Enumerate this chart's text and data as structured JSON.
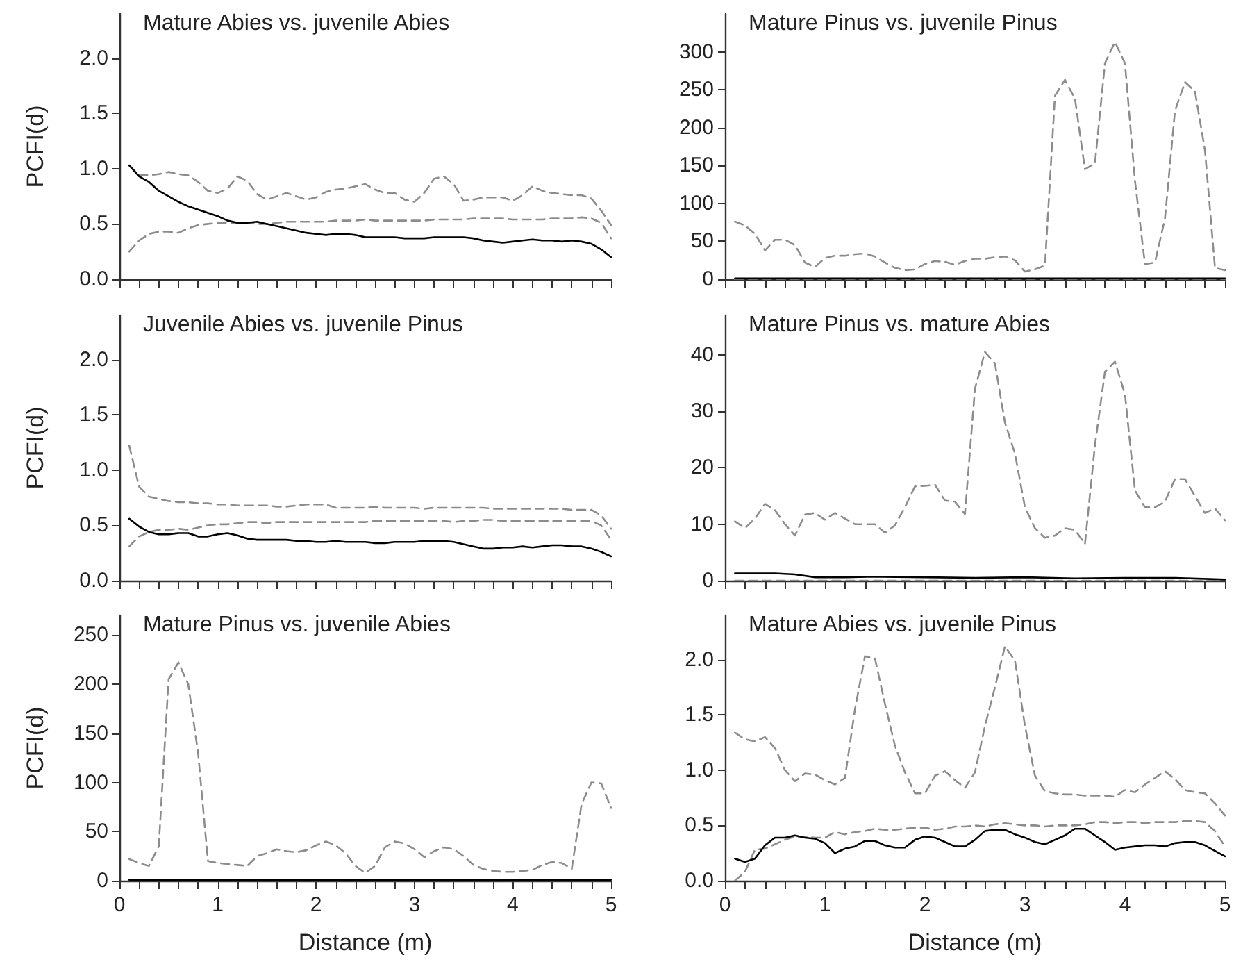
{
  "chart_data": [
    {
      "type": "line",
      "title": "Mature Abies vs. juvenile Abies",
      "ylabel": "PCFI(d)",
      "tick_labels": "y",
      "marker": "none",
      "x": [
        0.1,
        0.2,
        0.3,
        0.4,
        0.5,
        0.6,
        0.7,
        0.8,
        0.9,
        1.0,
        1.1,
        1.2,
        1.3,
        1.4,
        1.5,
        1.6,
        1.7,
        1.8,
        1.9,
        2.0,
        2.1,
        2.2,
        2.3,
        2.4,
        2.5,
        2.6,
        2.7,
        2.8,
        2.9,
        3.0,
        3.1,
        3.2,
        3.3,
        3.4,
        3.5,
        3.6,
        3.7,
        3.8,
        3.9,
        4.0,
        4.1,
        4.2,
        4.3,
        4.4,
        4.5,
        4.6,
        4.7,
        4.8,
        4.9,
        5.0
      ],
      "xlim": [
        0,
        5
      ],
      "xticks": [
        0,
        {
          "value": 0.2,
          "label": null
        },
        {
          "value": 0.4,
          "label": null
        },
        {
          "value": 0.6,
          "label": null
        },
        {
          "value": 0.8,
          "label": null
        },
        1,
        {
          "value": 1.2,
          "label": null
        },
        {
          "value": 1.4,
          "label": null
        },
        {
          "value": 1.6,
          "label": null
        },
        {
          "value": 1.8,
          "label": null
        },
        2,
        {
          "value": 2.2,
          "label": null
        },
        {
          "value": 2.4,
          "label": null
        },
        {
          "value": 2.6,
          "label": null
        },
        {
          "value": 2.8,
          "label": null
        },
        3,
        {
          "value": 3.2,
          "label": null
        },
        {
          "value": 3.4,
          "label": null
        },
        {
          "value": 3.6,
          "label": null
        },
        {
          "value": 3.8,
          "label": null
        },
        4,
        {
          "value": 4.2,
          "label": null
        },
        {
          "value": 4.4,
          "label": null
        },
        {
          "value": 4.6,
          "label": null
        },
        {
          "value": 4.8,
          "label": null
        },
        5
      ],
      "ylim": [
        0,
        2.4
      ],
      "yticks": [
        {
          "value": 0,
          "label": "0.0"
        },
        0.5,
        {
          "value": 1,
          "label": "1.0"
        },
        1.5,
        {
          "value": 2,
          "label": "2.0"
        }
      ],
      "series": [
        {
          "color": "#8c8c8c",
          "line_style": "dashed",
          "values": [
            1.03,
            0.94,
            0.94,
            0.95,
            0.97,
            0.95,
            0.94,
            0.88,
            0.8,
            0.78,
            0.82,
            0.93,
            0.89,
            0.77,
            0.72,
            0.75,
            0.78,
            0.75,
            0.72,
            0.74,
            0.79,
            0.81,
            0.82,
            0.84,
            0.86,
            0.81,
            0.78,
            0.78,
            0.72,
            0.7,
            0.78,
            0.91,
            0.93,
            0.86,
            0.71,
            0.72,
            0.74,
            0.74,
            0.74,
            0.71,
            0.76,
            0.84,
            0.8,
            0.78,
            0.77,
            0.76,
            0.76,
            0.73,
            0.62,
            0.49
          ]
        },
        {
          "color": "#8c8c8c",
          "line_style": "dashed",
          "values": [
            0.25,
            0.35,
            0.41,
            0.43,
            0.43,
            0.42,
            0.46,
            0.49,
            0.5,
            0.51,
            0.51,
            0.51,
            0.51,
            0.5,
            0.5,
            0.51,
            0.52,
            0.52,
            0.52,
            0.52,
            0.52,
            0.53,
            0.53,
            0.53,
            0.54,
            0.53,
            0.53,
            0.53,
            0.53,
            0.53,
            0.53,
            0.54,
            0.54,
            0.54,
            0.54,
            0.55,
            0.55,
            0.55,
            0.55,
            0.54,
            0.54,
            0.54,
            0.54,
            0.55,
            0.55,
            0.55,
            0.56,
            0.55,
            0.51,
            0.37
          ]
        },
        {
          "color": "#000000",
          "line_style": "solid",
          "values": [
            1.03,
            0.93,
            0.88,
            0.8,
            0.75,
            0.7,
            0.66,
            0.63,
            0.6,
            0.57,
            0.53,
            0.51,
            0.51,
            0.52,
            0.5,
            0.48,
            0.46,
            0.44,
            0.42,
            0.41,
            0.4,
            0.41,
            0.41,
            0.4,
            0.38,
            0.38,
            0.38,
            0.38,
            0.37,
            0.37,
            0.37,
            0.38,
            0.38,
            0.38,
            0.38,
            0.37,
            0.35,
            0.34,
            0.33,
            0.34,
            0.35,
            0.36,
            0.35,
            0.35,
            0.34,
            0.35,
            0.34,
            0.32,
            0.27,
            0.2
          ]
        }
      ]
    },
    {
      "type": "line",
      "title": "Mature Pinus vs. juvenile Pinus",
      "tick_labels": "y",
      "marker": "none",
      "x": [
        0.1,
        0.2,
        0.3,
        0.4,
        0.5,
        0.6,
        0.7,
        0.8,
        0.9,
        1.0,
        1.1,
        1.2,
        1.3,
        1.4,
        1.5,
        1.6,
        1.7,
        1.8,
        1.9,
        2.0,
        2.1,
        2.2,
        2.3,
        2.4,
        2.5,
        2.6,
        2.7,
        2.8,
        2.9,
        3.0,
        3.1,
        3.2,
        3.3,
        3.4,
        3.5,
        3.6,
        3.7,
        3.8,
        3.9,
        4.0,
        4.1,
        4.2,
        4.3,
        4.4,
        4.5,
        4.6,
        4.7,
        4.8,
        4.9,
        5.0
      ],
      "xlim": [
        0,
        5
      ],
      "xticks": [
        0,
        {
          "value": 0.2,
          "label": null
        },
        {
          "value": 0.4,
          "label": null
        },
        {
          "value": 0.6,
          "label": null
        },
        {
          "value": 0.8,
          "label": null
        },
        1,
        {
          "value": 1.2,
          "label": null
        },
        {
          "value": 1.4,
          "label": null
        },
        {
          "value": 1.6,
          "label": null
        },
        {
          "value": 1.8,
          "label": null
        },
        2,
        {
          "value": 2.2,
          "label": null
        },
        {
          "value": 2.4,
          "label": null
        },
        {
          "value": 2.6,
          "label": null
        },
        {
          "value": 2.8,
          "label": null
        },
        3,
        {
          "value": 3.2,
          "label": null
        },
        {
          "value": 3.4,
          "label": null
        },
        {
          "value": 3.6,
          "label": null
        },
        {
          "value": 3.8,
          "label": null
        },
        4,
        {
          "value": 4.2,
          "label": null
        },
        {
          "value": 4.4,
          "label": null
        },
        {
          "value": 4.6,
          "label": null
        },
        {
          "value": 4.8,
          "label": null
        },
        5
      ],
      "ylim": [
        0,
        350
      ],
      "yticks": [
        0,
        50,
        100,
        150,
        200,
        250,
        300
      ],
      "series": [
        {
          "color": "#8c8c8c",
          "line_style": "dashed",
          "values": [
            76,
            71,
            60,
            38,
            52,
            52,
            45,
            22,
            16,
            28,
            31,
            31,
            33,
            34,
            30,
            22,
            15,
            12,
            13,
            20,
            24,
            23,
            19,
            24,
            27,
            27,
            29,
            30,
            25,
            10,
            13,
            18,
            242,
            263,
            238,
            145,
            153,
            285,
            313,
            285,
            130,
            20,
            22,
            80,
            222,
            260,
            248,
            170,
            15,
            12
          ]
        },
        {
          "color": "#8c8c8c",
          "line_style": "dashed",
          "x": [
            0.1,
            5.0
          ],
          "values": [
            0,
            0
          ]
        },
        {
          "color": "#000000",
          "line_style": "solid",
          "x": [
            0.1,
            5.0
          ],
          "values": [
            1,
            1
          ]
        }
      ]
    },
    {
      "type": "line",
      "title": "Juvenile Abies vs. juvenile Pinus",
      "ylabel": "PCFI(d)",
      "tick_labels": "y",
      "marker": "none",
      "x": [
        0.1,
        0.2,
        0.3,
        0.4,
        0.5,
        0.6,
        0.7,
        0.8,
        0.9,
        1.0,
        1.1,
        1.2,
        1.3,
        1.4,
        1.5,
        1.6,
        1.7,
        1.8,
        1.9,
        2.0,
        2.1,
        2.2,
        2.3,
        2.4,
        2.5,
        2.6,
        2.7,
        2.8,
        2.9,
        3.0,
        3.1,
        3.2,
        3.3,
        3.4,
        3.5,
        3.6,
        3.7,
        3.8,
        3.9,
        4.0,
        4.1,
        4.2,
        4.3,
        4.4,
        4.5,
        4.6,
        4.7,
        4.8,
        4.9,
        5.0
      ],
      "xlim": [
        0,
        5
      ],
      "xticks": [
        0,
        {
          "value": 0.2,
          "label": null
        },
        {
          "value": 0.4,
          "label": null
        },
        {
          "value": 0.6,
          "label": null
        },
        {
          "value": 0.8,
          "label": null
        },
        1,
        {
          "value": 1.2,
          "label": null
        },
        {
          "value": 1.4,
          "label": null
        },
        {
          "value": 1.6,
          "label": null
        },
        {
          "value": 1.8,
          "label": null
        },
        2,
        {
          "value": 2.2,
          "label": null
        },
        {
          "value": 2.4,
          "label": null
        },
        {
          "value": 2.6,
          "label": null
        },
        {
          "value": 2.8,
          "label": null
        },
        3,
        {
          "value": 3.2,
          "label": null
        },
        {
          "value": 3.4,
          "label": null
        },
        {
          "value": 3.6,
          "label": null
        },
        {
          "value": 3.8,
          "label": null
        },
        4,
        {
          "value": 4.2,
          "label": null
        },
        {
          "value": 4.4,
          "label": null
        },
        {
          "value": 4.6,
          "label": null
        },
        {
          "value": 4.8,
          "label": null
        },
        5
      ],
      "ylim": [
        0,
        2.4
      ],
      "yticks": [
        {
          "value": 0,
          "label": "0.0"
        },
        0.5,
        {
          "value": 1,
          "label": "1.0"
        },
        1.5,
        {
          "value": 2,
          "label": "2.0"
        }
      ],
      "series": [
        {
          "color": "#8c8c8c",
          "line_style": "dashed",
          "values": [
            1.22,
            0.85,
            0.76,
            0.74,
            0.72,
            0.71,
            0.71,
            0.7,
            0.7,
            0.69,
            0.69,
            0.68,
            0.68,
            0.68,
            0.68,
            0.67,
            0.67,
            0.68,
            0.69,
            0.69,
            0.69,
            0.66,
            0.66,
            0.66,
            0.66,
            0.67,
            0.66,
            0.66,
            0.66,
            0.66,
            0.65,
            0.66,
            0.66,
            0.66,
            0.66,
            0.66,
            0.66,
            0.65,
            0.65,
            0.65,
            0.65,
            0.65,
            0.65,
            0.65,
            0.65,
            0.64,
            0.64,
            0.64,
            0.59,
            0.47
          ]
        },
        {
          "color": "#8c8c8c",
          "line_style": "dashed",
          "values": [
            0.31,
            0.4,
            0.44,
            0.46,
            0.46,
            0.47,
            0.46,
            0.48,
            0.5,
            0.51,
            0.51,
            0.52,
            0.53,
            0.53,
            0.52,
            0.53,
            0.53,
            0.53,
            0.53,
            0.53,
            0.53,
            0.53,
            0.53,
            0.53,
            0.53,
            0.54,
            0.54,
            0.54,
            0.54,
            0.54,
            0.54,
            0.54,
            0.54,
            0.53,
            0.54,
            0.54,
            0.55,
            0.55,
            0.54,
            0.54,
            0.54,
            0.54,
            0.54,
            0.54,
            0.54,
            0.54,
            0.54,
            0.54,
            0.5,
            0.37
          ]
        },
        {
          "color": "#000000",
          "line_style": "solid",
          "values": [
            0.56,
            0.49,
            0.44,
            0.42,
            0.42,
            0.43,
            0.43,
            0.4,
            0.4,
            0.42,
            0.43,
            0.41,
            0.38,
            0.37,
            0.37,
            0.37,
            0.37,
            0.36,
            0.36,
            0.35,
            0.35,
            0.36,
            0.35,
            0.35,
            0.35,
            0.34,
            0.34,
            0.35,
            0.35,
            0.35,
            0.36,
            0.36,
            0.36,
            0.35,
            0.33,
            0.31,
            0.29,
            0.29,
            0.3,
            0.3,
            0.31,
            0.3,
            0.31,
            0.32,
            0.32,
            0.31,
            0.31,
            0.29,
            0.26,
            0.22
          ]
        }
      ]
    },
    {
      "type": "line",
      "title": "Mature Pinus vs. mature Abies",
      "tick_labels": "y",
      "marker": "none",
      "x": [
        0.1,
        0.2,
        0.3,
        0.4,
        0.5,
        0.6,
        0.7,
        0.8,
        0.9,
        1.0,
        1.1,
        1.2,
        1.3,
        1.4,
        1.5,
        1.6,
        1.7,
        1.8,
        1.9,
        2.0,
        2.1,
        2.2,
        2.3,
        2.4,
        2.5,
        2.6,
        2.7,
        2.8,
        2.9,
        3.0,
        3.1,
        3.2,
        3.3,
        3.4,
        3.5,
        3.6,
        3.7,
        3.8,
        3.9,
        4.0,
        4.1,
        4.2,
        4.3,
        4.4,
        4.5,
        4.6,
        4.7,
        4.8,
        4.9,
        5.0
      ],
      "xlim": [
        0,
        5
      ],
      "xticks": [
        0,
        {
          "value": 0.2,
          "label": null
        },
        {
          "value": 0.4,
          "label": null
        },
        {
          "value": 0.6,
          "label": null
        },
        {
          "value": 0.8,
          "label": null
        },
        1,
        {
          "value": 1.2,
          "label": null
        },
        {
          "value": 1.4,
          "label": null
        },
        {
          "value": 1.6,
          "label": null
        },
        {
          "value": 1.8,
          "label": null
        },
        2,
        {
          "value": 2.2,
          "label": null
        },
        {
          "value": 2.4,
          "label": null
        },
        {
          "value": 2.6,
          "label": null
        },
        {
          "value": 2.8,
          "label": null
        },
        3,
        {
          "value": 3.2,
          "label": null
        },
        {
          "value": 3.4,
          "label": null
        },
        {
          "value": 3.6,
          "label": null
        },
        {
          "value": 3.8,
          "label": null
        },
        4,
        {
          "value": 4.2,
          "label": null
        },
        {
          "value": 4.4,
          "label": null
        },
        {
          "value": 4.6,
          "label": null
        },
        {
          "value": 4.8,
          "label": null
        },
        5
      ],
      "ylim": [
        0,
        47
      ],
      "yticks": [
        0,
        10,
        20,
        30,
        40
      ],
      "series": [
        {
          "color": "#8c8c8c",
          "line_style": "dashed",
          "values": [
            10.5,
            9.3,
            11,
            13.6,
            12.5,
            10,
            8,
            11.7,
            12,
            10.8,
            12,
            11,
            10,
            10,
            10,
            8.5,
            9.8,
            13,
            16.7,
            16.8,
            17,
            14.2,
            14,
            11.8,
            34,
            40.5,
            38.5,
            28,
            22.5,
            13,
            9.3,
            7.6,
            8,
            9.3,
            9,
            6.5,
            24,
            37,
            38.8,
            33,
            16,
            13,
            13,
            14,
            18,
            18,
            15,
            12,
            12.8,
            10.7
          ]
        },
        {
          "color": "#8c8c8c",
          "line_style": "dashed",
          "x": [
            0.1,
            5.0
          ],
          "values": [
            0,
            0
          ]
        },
        {
          "color": "#000000",
          "line_style": "solid",
          "x": [
            0.1,
            0.5,
            0.7,
            0.9,
            1.2,
            1.5,
            2.0,
            2.5,
            3.0,
            3.5,
            4.0,
            4.5,
            5.0
          ],
          "values": [
            1.3,
            1.3,
            1.1,
            0.6,
            0.6,
            0.7,
            0.6,
            0.5,
            0.6,
            0.4,
            0.5,
            0.5,
            0.2
          ]
        }
      ]
    },
    {
      "type": "line",
      "title": "Mature Pinus vs. juvenile Abies",
      "ylabel": "PCFI(d)",
      "xlabel": "Distance (m)",
      "marker": "none",
      "x": [
        0.1,
        0.2,
        0.3,
        0.4,
        0.5,
        0.6,
        0.7,
        0.8,
        0.9,
        1.0,
        1.1,
        1.2,
        1.3,
        1.4,
        1.5,
        1.6,
        1.7,
        1.8,
        1.9,
        2.0,
        2.1,
        2.2,
        2.3,
        2.4,
        2.5,
        2.6,
        2.7,
        2.8,
        2.9,
        3.0,
        3.1,
        3.2,
        3.3,
        3.4,
        3.5,
        3.6,
        3.7,
        3.8,
        3.9,
        4.0,
        4.1,
        4.2,
        4.3,
        4.4,
        4.5,
        4.6,
        4.7,
        4.8,
        4.9,
        5.0
      ],
      "xlim": [
        0,
        5
      ],
      "xticks": [
        0,
        {
          "value": 0.2,
          "label": null
        },
        {
          "value": 0.4,
          "label": null
        },
        {
          "value": 0.6,
          "label": null
        },
        {
          "value": 0.8,
          "label": null
        },
        1,
        {
          "value": 1.2,
          "label": null
        },
        {
          "value": 1.4,
          "label": null
        },
        {
          "value": 1.6,
          "label": null
        },
        {
          "value": 1.8,
          "label": null
        },
        2,
        {
          "value": 2.2,
          "label": null
        },
        {
          "value": 2.4,
          "label": null
        },
        {
          "value": 2.6,
          "label": null
        },
        {
          "value": 2.8,
          "label": null
        },
        3,
        {
          "value": 3.2,
          "label": null
        },
        {
          "value": 3.4,
          "label": null
        },
        {
          "value": 3.6,
          "label": null
        },
        {
          "value": 3.8,
          "label": null
        },
        4,
        {
          "value": 4.2,
          "label": null
        },
        {
          "value": 4.4,
          "label": null
        },
        {
          "value": 4.6,
          "label": null
        },
        {
          "value": 4.8,
          "label": null
        },
        5
      ],
      "ylim": [
        0,
        270
      ],
      "yticks": [
        0,
        50,
        100,
        150,
        200,
        250
      ],
      "series": [
        {
          "color": "#8c8c8c",
          "line_style": "dashed",
          "values": [
            22,
            18,
            15,
            35,
            205,
            222,
            200,
            130,
            20,
            18,
            17,
            16,
            15,
            25,
            28,
            32,
            30,
            29,
            31,
            36,
            40,
            36,
            28,
            15,
            8,
            15,
            34,
            40,
            38,
            32,
            24,
            30,
            34,
            32,
            25,
            16,
            12,
            10,
            9,
            9,
            10,
            11,
            16,
            19,
            18,
            12,
            78,
            100,
            99,
            74
          ]
        },
        {
          "color": "#8c8c8c",
          "line_style": "dashed",
          "x": [
            0.1,
            5.0
          ],
          "values": [
            0,
            0
          ]
        },
        {
          "color": "#000000",
          "line_style": "solid",
          "x": [
            0.1,
            5.0
          ],
          "values": [
            1,
            1
          ]
        }
      ]
    },
    {
      "type": "line",
      "title": "Mature Abies vs. juvenile Pinus",
      "xlabel": "Distance (m)",
      "marker": "none",
      "x": [
        0.1,
        0.2,
        0.3,
        0.4,
        0.5,
        0.6,
        0.7,
        0.8,
        0.9,
        1.0,
        1.1,
        1.2,
        1.3,
        1.4,
        1.5,
        1.6,
        1.7,
        1.8,
        1.9,
        2.0,
        2.1,
        2.2,
        2.3,
        2.4,
        2.5,
        2.6,
        2.7,
        2.8,
        2.9,
        3.0,
        3.1,
        3.2,
        3.3,
        3.4,
        3.5,
        3.6,
        3.7,
        3.8,
        3.9,
        4.0,
        4.1,
        4.2,
        4.3,
        4.4,
        4.5,
        4.6,
        4.7,
        4.8,
        4.9,
        5.0
      ],
      "xlim": [
        0,
        5
      ],
      "xticks": [
        0,
        {
          "value": 0.2,
          "label": null
        },
        {
          "value": 0.4,
          "label": null
        },
        {
          "value": 0.6,
          "label": null
        },
        {
          "value": 0.8,
          "label": null
        },
        1,
        {
          "value": 1.2,
          "label": null
        },
        {
          "value": 1.4,
          "label": null
        },
        {
          "value": 1.6,
          "label": null
        },
        {
          "value": 1.8,
          "label": null
        },
        2,
        {
          "value": 2.2,
          "label": null
        },
        {
          "value": 2.4,
          "label": null
        },
        {
          "value": 2.6,
          "label": null
        },
        {
          "value": 2.8,
          "label": null
        },
        3,
        {
          "value": 3.2,
          "label": null
        },
        {
          "value": 3.4,
          "label": null
        },
        {
          "value": 3.6,
          "label": null
        },
        {
          "value": 3.8,
          "label": null
        },
        4,
        {
          "value": 4.2,
          "label": null
        },
        {
          "value": 4.4,
          "label": null
        },
        {
          "value": 4.6,
          "label": null
        },
        {
          "value": 4.8,
          "label": null
        },
        5
      ],
      "ylim": [
        0,
        2.4
      ],
      "yticks": [
        {
          "value": 0,
          "label": "0.0"
        },
        0.5,
        {
          "value": 1,
          "label": "1.0"
        },
        1.5,
        {
          "value": 2,
          "label": "2.0"
        }
      ],
      "series": [
        {
          "color": "#8c8c8c",
          "line_style": "dashed",
          "values": [
            1.34,
            1.28,
            1.26,
            1.3,
            1.2,
            1,
            0.9,
            0.97,
            0.96,
            0.91,
            0.87,
            0.93,
            1.55,
            2.03,
            2.01,
            1.6,
            1.22,
            0.98,
            0.79,
            0.79,
            0.95,
            0.99,
            0.91,
            0.84,
            0.98,
            1.4,
            1.75,
            2.12,
            1.99,
            1.4,
            0.95,
            0.81,
            0.79,
            0.78,
            0.78,
            0.77,
            0.77,
            0.77,
            0.76,
            0.82,
            0.8,
            0.87,
            0.93,
            0.99,
            0.92,
            0.82,
            0.8,
            0.79,
            0.7,
            0.59
          ]
        },
        {
          "color": "#8c8c8c",
          "line_style": "dashed",
          "values": [
            0,
            0.08,
            0.28,
            0.29,
            0.33,
            0.37,
            0.4,
            0.4,
            0.39,
            0.39,
            0.44,
            0.42,
            0.44,
            0.45,
            0.47,
            0.46,
            0.46,
            0.47,
            0.48,
            0.48,
            0.46,
            0.47,
            0.49,
            0.49,
            0.5,
            0.49,
            0.51,
            0.52,
            0.51,
            0.5,
            0.5,
            0.49,
            0.5,
            0.5,
            0.5,
            0.51,
            0.53,
            0.53,
            0.52,
            0.53,
            0.53,
            0.52,
            0.53,
            0.53,
            0.53,
            0.54,
            0.54,
            0.53,
            0.45,
            0.31
          ]
        },
        {
          "color": "#000000",
          "line_style": "solid",
          "values": [
            0.2,
            0.17,
            0.2,
            0.32,
            0.39,
            0.39,
            0.41,
            0.39,
            0.38,
            0.34,
            0.25,
            0.29,
            0.31,
            0.36,
            0.36,
            0.32,
            0.3,
            0.3,
            0.37,
            0.4,
            0.39,
            0.35,
            0.31,
            0.31,
            0.37,
            0.45,
            0.46,
            0.46,
            0.42,
            0.39,
            0.35,
            0.33,
            0.37,
            0.41,
            0.47,
            0.47,
            0.41,
            0.35,
            0.28,
            0.3,
            0.31,
            0.32,
            0.32,
            0.31,
            0.34,
            0.35,
            0.35,
            0.32,
            0.27,
            0.22
          ]
        }
      ]
    }
  ]
}
